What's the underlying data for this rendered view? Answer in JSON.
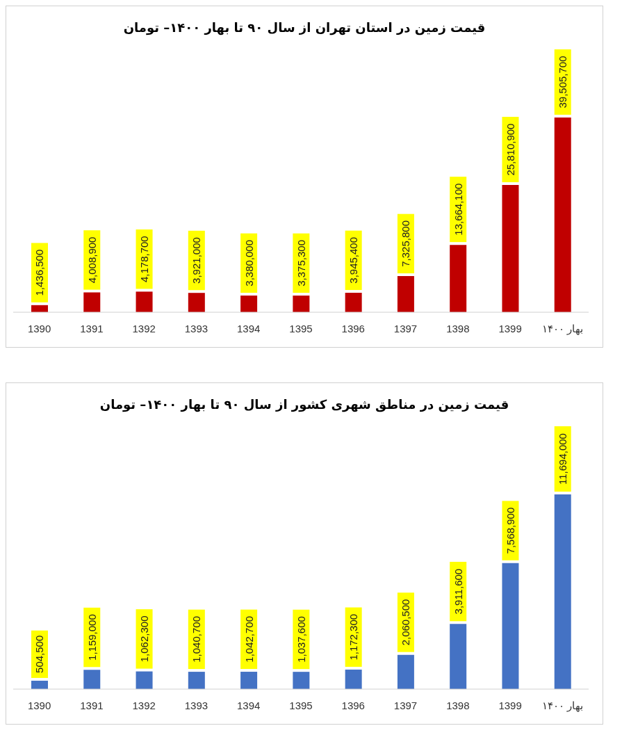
{
  "chart_data": [
    {
      "type": "bar",
      "title": "قیمت زمین در استان تهران از سال ۹۰ تا بهار ۱۴۰۰– تومان",
      "categories": [
        "1390",
        "1391",
        "1392",
        "1393",
        "1394",
        "1395",
        "1396",
        "1397",
        "1398",
        "1399",
        "بهار ۱۴۰۰"
      ],
      "values": [
        1436500,
        4008900,
        4178700,
        3921000,
        3380000,
        3375300,
        3945400,
        7325800,
        13664100,
        25810900,
        39505700
      ],
      "color": "#c00000",
      "value_labels": [
        "1,436,500",
        "4,008,900",
        "4,178,700",
        "3,921,000",
        "3,380,000",
        "3,375,300",
        "3,945,400",
        "7,325,800",
        "13,664,100",
        "25,810,900",
        "39,505,700"
      ]
    },
    {
      "type": "bar",
      "title": "قیمت زمین در مناطق شهری کشور از سال ۹۰ تا بهار ۱۴۰۰– تومان",
      "categories": [
        "1390",
        "1391",
        "1392",
        "1393",
        "1394",
        "1395",
        "1396",
        "1397",
        "1398",
        "1399",
        "بهار ۱۴۰۰"
      ],
      "values": [
        504500,
        1159000,
        1062300,
        1040700,
        1042700,
        1037600,
        1172300,
        2060500,
        3911600,
        7568900,
        11694000
      ],
      "color": "#4472c4",
      "value_labels": [
        "504,500",
        "1,159,000",
        "1,062,300",
        "1,040,700",
        "1,042,700",
        "1,037,600",
        "1,172,300",
        "2,060,500",
        "3,911,600",
        "7,568,900",
        "11,694,000"
      ]
    }
  ]
}
